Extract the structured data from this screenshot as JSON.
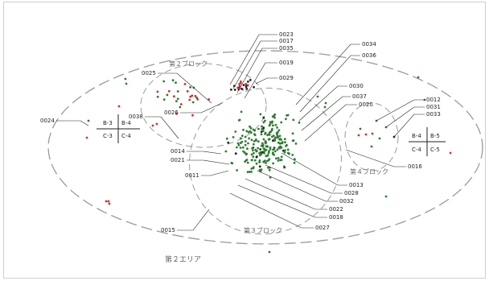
{
  "area_label": "第２エリア",
  "blocks": {
    "block2": "第２ブロック",
    "block3": "第３ブロック",
    "block4": "第４ブロック"
  },
  "grid_left": {
    "tl": "B-3",
    "tr": "B-4",
    "bl": "C-3",
    "br": "C-4"
  },
  "grid_right": {
    "tl": "B-4",
    "tr": "B-5",
    "bl": "C-4",
    "br": "C-5"
  },
  "labels": {
    "l0023": "0023",
    "l0017": "0017",
    "l0035": "0035",
    "l0019": "0019",
    "l0029": "0029",
    "l0025": "0025",
    "l0026": "0026",
    "l0024": "0024",
    "l0038": "0038",
    "l0014": "0014",
    "l0021": "0021",
    "l0011": "0011",
    "l0015": "0015",
    "l0034": "0034",
    "l0036": "0036",
    "l0030": "0030",
    "l0037": "0037",
    "l0020": "0020",
    "l0012": "0012",
    "l0031": "0031",
    "l0033": "0033",
    "l0016": "0016",
    "l0013": "0013",
    "l0028": "0028",
    "l0032": "0032",
    "l0022": "0022",
    "l0018": "0018",
    "l0027": "0027"
  },
  "colors": {
    "green": "#2e7d32",
    "red": "#d32f2f",
    "black": "#222222",
    "dash": "#9a9a9a"
  }
}
